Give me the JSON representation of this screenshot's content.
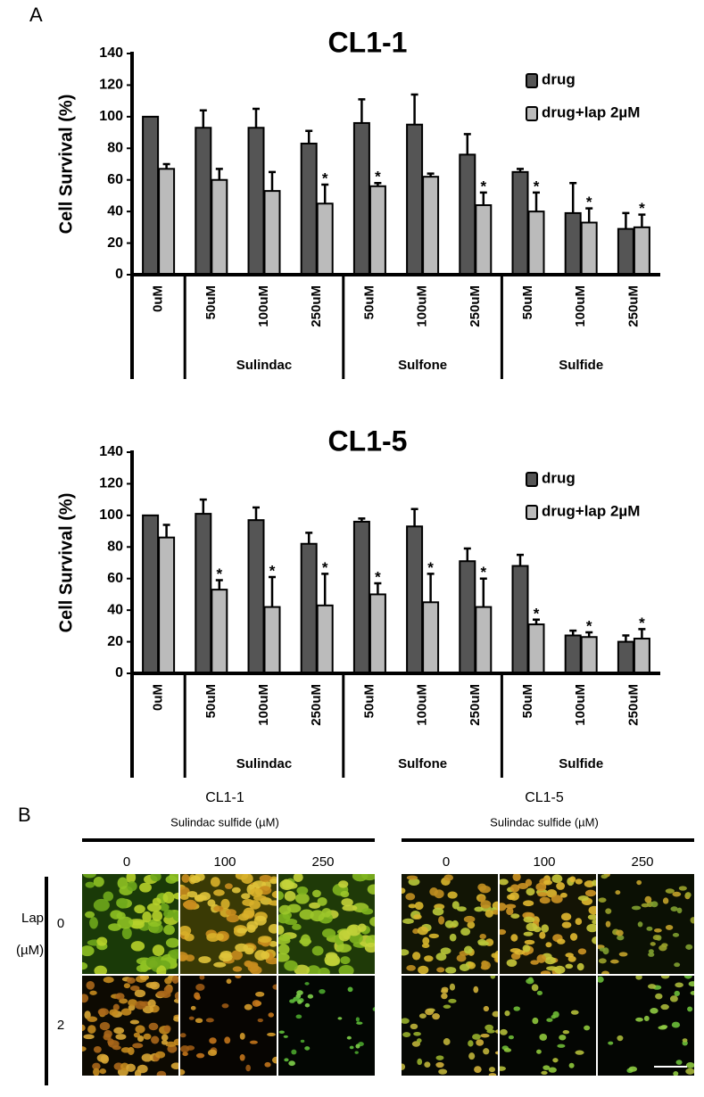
{
  "panel_a_label": "A",
  "chart_data": [
    {
      "type": "bar",
      "title": "CL1-1",
      "y_label": "Cell Survival (%)",
      "categories": [
        "0uM",
        "50uM",
        "100uM",
        "250uM",
        "50uM",
        "100uM",
        "250uM",
        "50uM",
        "100uM",
        "250uM"
      ],
      "category_groups": [
        null,
        "Sulindac",
        "Sulindac",
        "Sulindac",
        "Sulfone",
        "Sulfone",
        "Sulfone",
        "Sulfide",
        "Sulfide",
        "Sulfide"
      ],
      "series": [
        {
          "name": "drug",
          "color": "#555555",
          "values": [
            100,
            93,
            93,
            83,
            96,
            95,
            76,
            65,
            39,
            29
          ],
          "errors": [
            null,
            11,
            12,
            8,
            15,
            19,
            13,
            2,
            19,
            10
          ],
          "annotations": [
            null,
            null,
            null,
            null,
            null,
            null,
            null,
            null,
            null,
            null
          ]
        },
        {
          "name": "drug+lap 2µM",
          "color": "#bbbbbb",
          "values": [
            67,
            60,
            53,
            45,
            56,
            62,
            44,
            40,
            33,
            30
          ],
          "errors": [
            3,
            7,
            12,
            12,
            2,
            2,
            8,
            12,
            9,
            8
          ],
          "annotations": [
            null,
            null,
            null,
            "*",
            "*",
            null,
            "*",
            "*",
            "*",
            "*"
          ]
        }
      ],
      "ylim": [
        0,
        140
      ],
      "yticks": [
        0,
        20,
        40,
        60,
        80,
        100,
        120,
        140
      ],
      "grid": false,
      "legend": "top-right"
    },
    {
      "type": "bar",
      "title": "CL1-5",
      "y_label": "Cell Survival (%)",
      "categories": [
        "0uM",
        "50uM",
        "100uM",
        "250uM",
        "50uM",
        "100uM",
        "250uM",
        "50uM",
        "100uM",
        "250uM"
      ],
      "category_groups": [
        null,
        "Sulindac",
        "Sulindac",
        "Sulindac",
        "Sulfone",
        "Sulfone",
        "Sulfone",
        "Sulfide",
        "Sulfide",
        "Sulfide"
      ],
      "series": [
        {
          "name": "drug",
          "color": "#555555",
          "values": [
            100,
            101,
            97,
            82,
            96,
            93,
            71,
            68,
            24,
            20
          ],
          "errors": [
            null,
            9,
            8,
            7,
            2,
            11,
            8,
            7,
            3,
            4
          ],
          "annotations": [
            null,
            null,
            null,
            null,
            null,
            null,
            null,
            null,
            null,
            null
          ]
        },
        {
          "name": "drug+lap 2µM",
          "color": "#bbbbbb",
          "values": [
            86,
            53,
            42,
            43,
            50,
            45,
            42,
            31,
            23,
            22
          ],
          "errors": [
            8,
            6,
            19,
            20,
            7,
            18,
            18,
            3,
            3,
            6
          ],
          "annotations": [
            null,
            "*",
            "*",
            "*",
            "*",
            "*",
            "*",
            "*",
            "*",
            "*"
          ]
        }
      ],
      "ylim": [
        0,
        140
      ],
      "yticks": [
        0,
        20,
        40,
        60,
        80,
        100,
        120,
        140
      ],
      "grid": false,
      "legend": "top-right"
    }
  ],
  "panel_b": {
    "label": "B",
    "lap_label": "Lap",
    "lap_unit": "(µM)",
    "lap_levels": [
      "0",
      "2"
    ],
    "panels": [
      {
        "title": "CL1-1",
        "subtitle": "Sulindac sulfide (µM)",
        "doses": [
          "0",
          "100",
          "250"
        ]
      },
      {
        "title": "CL1-5",
        "subtitle": "Sulindac sulfide (µM)",
        "doses": [
          "0",
          "100",
          "250"
        ]
      }
    ]
  }
}
